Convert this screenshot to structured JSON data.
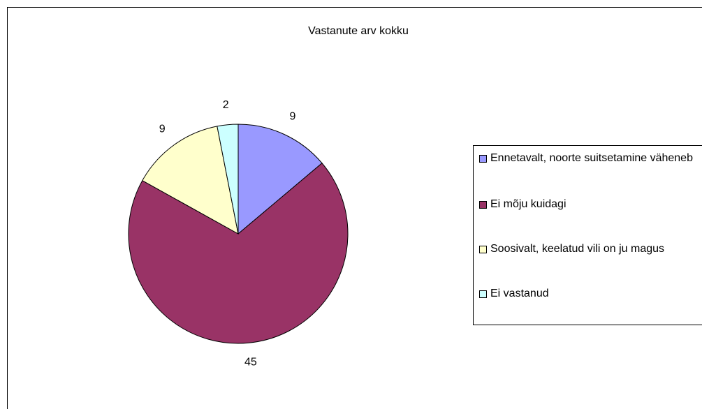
{
  "chart_data": {
    "type": "pie",
    "title": "Vastanute arv kokku",
    "categories": [
      "Ennetavalt, noorte suitsetamine väheneb",
      "Ei mõju kuidagi",
      "Soosivalt, keelatud vili on ju magus",
      "Ei vastanud"
    ],
    "values": [
      9,
      45,
      9,
      2
    ],
    "colors": [
      "#9999ff",
      "#993366",
      "#ffffcc",
      "#ccffff"
    ],
    "legend": "right"
  }
}
